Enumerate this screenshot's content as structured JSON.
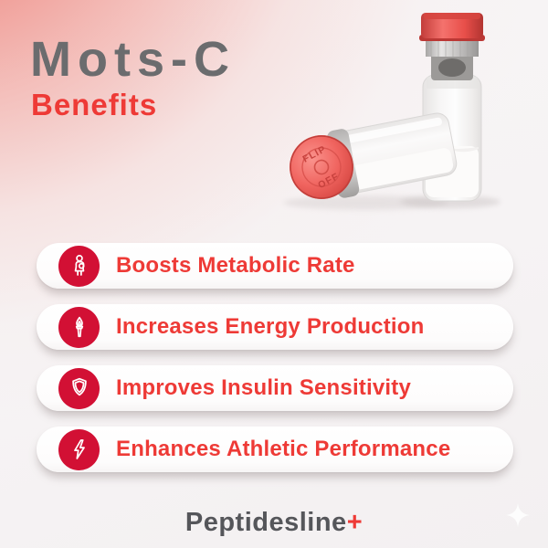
{
  "header": {
    "title": "Mots-C",
    "subtitle": "Benefits"
  },
  "product_photo": {
    "alt": "Two glass peptide vials with red flip-off caps, aluminum seals and white lyophilized powder",
    "cap_text_line1": "FLIP",
    "cap_text_line2": "OFF"
  },
  "benefits": [
    {
      "label": "Boosts Metabolic Rate",
      "icon": "metabolism-person-icon"
    },
    {
      "label": "Increases Energy Production",
      "icon": "torch-icon"
    },
    {
      "label": "Improves Insulin Sensitivity",
      "icon": "shield-icon"
    },
    {
      "label": "Enhances Athletic Performance",
      "icon": "lightning-icon"
    }
  ],
  "brand": {
    "name": "Peptidesline",
    "plus": "+"
  },
  "colors": {
    "accent_red": "#ee3a36",
    "icon_circle_red": "#d21034",
    "title_gray": "#6b6c6e",
    "logo_gray": "#55565a",
    "corner_gradient_red": "#ec7067",
    "cap_red": "#ef615c"
  }
}
